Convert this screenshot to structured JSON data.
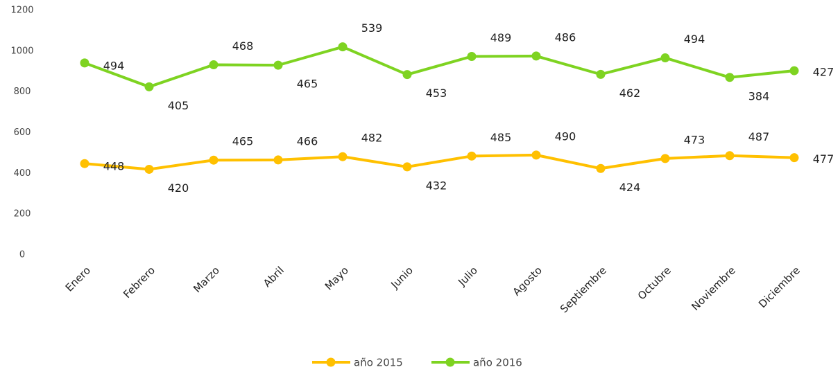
{
  "chart_data": {
    "type": "line",
    "stacked": true,
    "categories": [
      "Enero",
      "Febrero",
      "Marzo",
      "Abril",
      "Mayo",
      "Junio",
      "Julio",
      "Agosto",
      "Septiembre",
      "Octubre",
      "Noviembre",
      "Diciembre"
    ],
    "series": [
      {
        "name": "año 2015",
        "color": "#ffc000",
        "values": [
          448,
          420,
          465,
          466,
          482,
          432,
          485,
          490,
          424,
          473,
          487,
          477
        ]
      },
      {
        "name": "año 2016",
        "color": "#7ed321",
        "values": [
          494,
          405,
          468,
          465,
          539,
          453,
          489,
          486,
          462,
          494,
          384,
          427
        ]
      }
    ],
    "ylim": [
      0,
      1200
    ],
    "yticks": [
      0,
      200,
      400,
      600,
      800,
      1000,
      1200
    ],
    "grid": false,
    "legend": "bottom"
  }
}
